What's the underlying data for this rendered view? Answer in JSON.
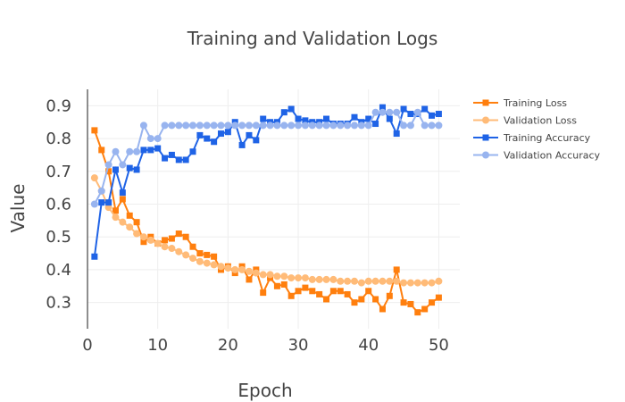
{
  "chart_data": {
    "type": "line",
    "title": "Training and Validation Logs",
    "xlabel": "Epoch",
    "ylabel": "Value",
    "xlim": [
      0,
      53
    ],
    "ylim": [
      0.22,
      0.95
    ],
    "x_ticks": [
      0,
      10,
      20,
      30,
      40,
      50
    ],
    "y_ticks": [
      0.3,
      0.4,
      0.5,
      0.6,
      0.7,
      0.8,
      0.9
    ],
    "grid": true,
    "legend_position": "top-right",
    "x": [
      1,
      2,
      3,
      4,
      5,
      6,
      7,
      8,
      9,
      10,
      11,
      12,
      13,
      14,
      15,
      16,
      17,
      18,
      19,
      20,
      21,
      22,
      23,
      24,
      25,
      26,
      27,
      28,
      29,
      30,
      31,
      32,
      33,
      34,
      35,
      36,
      37,
      38,
      39,
      40,
      41,
      42,
      43,
      44,
      45,
      46,
      47,
      48,
      49,
      50
    ],
    "series": [
      {
        "name": "Training Loss",
        "color": "#ff7f0e",
        "marker": "square",
        "values": [
          0.825,
          0.765,
          0.7,
          0.58,
          0.615,
          0.565,
          0.545,
          0.485,
          0.5,
          0.48,
          0.49,
          0.495,
          0.51,
          0.5,
          0.47,
          0.45,
          0.445,
          0.44,
          0.4,
          0.41,
          0.39,
          0.41,
          0.37,
          0.4,
          0.33,
          0.375,
          0.35,
          0.355,
          0.32,
          0.335,
          0.345,
          0.335,
          0.325,
          0.31,
          0.335,
          0.335,
          0.325,
          0.3,
          0.31,
          0.335,
          0.31,
          0.28,
          0.32,
          0.4,
          0.3,
          0.295,
          0.27,
          0.28,
          0.3,
          0.315
        ]
      },
      {
        "name": "Validation Loss",
        "color": "#ffbb78",
        "marker": "circle",
        "values": [
          0.68,
          0.64,
          0.59,
          0.56,
          0.545,
          0.53,
          0.51,
          0.5,
          0.49,
          0.48,
          0.47,
          0.465,
          0.455,
          0.445,
          0.435,
          0.425,
          0.42,
          0.415,
          0.41,
          0.405,
          0.4,
          0.4,
          0.395,
          0.39,
          0.385,
          0.385,
          0.38,
          0.38,
          0.375,
          0.375,
          0.375,
          0.37,
          0.37,
          0.37,
          0.37,
          0.365,
          0.365,
          0.365,
          0.36,
          0.365,
          0.365,
          0.365,
          0.365,
          0.365,
          0.36,
          0.36,
          0.36,
          0.36,
          0.36,
          0.365
        ]
      },
      {
        "name": "Training Accuracy",
        "color": "#1f63e6",
        "marker": "square",
        "values": [
          0.44,
          0.605,
          0.605,
          0.705,
          0.635,
          0.71,
          0.705,
          0.765,
          0.765,
          0.77,
          0.74,
          0.75,
          0.735,
          0.735,
          0.76,
          0.81,
          0.8,
          0.79,
          0.815,
          0.82,
          0.85,
          0.78,
          0.81,
          0.795,
          0.86,
          0.85,
          0.85,
          0.88,
          0.89,
          0.86,
          0.855,
          0.85,
          0.85,
          0.86,
          0.845,
          0.845,
          0.845,
          0.865,
          0.85,
          0.86,
          0.845,
          0.895,
          0.86,
          0.815,
          0.89,
          0.875,
          0.875,
          0.89,
          0.87,
          0.875
        ]
      },
      {
        "name": "Validation Accuracy",
        "color": "#98b4ef",
        "marker": "circle",
        "values": [
          0.6,
          0.64,
          0.72,
          0.76,
          0.72,
          0.76,
          0.76,
          0.84,
          0.8,
          0.8,
          0.84,
          0.84,
          0.84,
          0.84,
          0.84,
          0.84,
          0.84,
          0.84,
          0.84,
          0.84,
          0.84,
          0.84,
          0.84,
          0.84,
          0.84,
          0.84,
          0.84,
          0.84,
          0.84,
          0.84,
          0.84,
          0.84,
          0.84,
          0.84,
          0.84,
          0.84,
          0.84,
          0.84,
          0.84,
          0.84,
          0.88,
          0.88,
          0.88,
          0.88,
          0.84,
          0.84,
          0.88,
          0.84,
          0.84,
          0.84
        ]
      }
    ]
  }
}
